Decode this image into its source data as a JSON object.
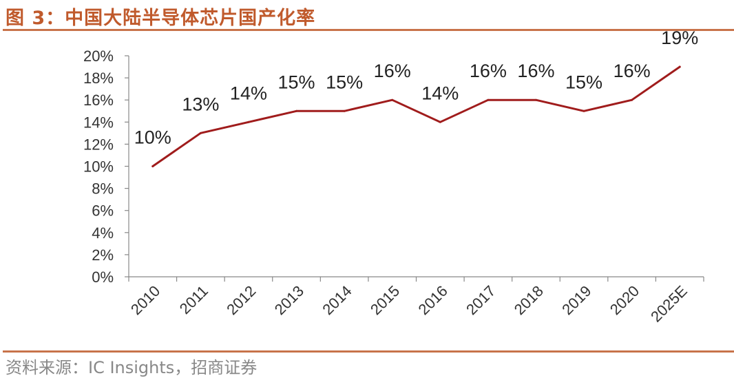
{
  "figure": {
    "title": "图 3：中国大陆半导体芯片国产化率",
    "source": "资料来源：IC Insights，招商证券"
  },
  "colors": {
    "title": "#c05a2c",
    "rule": "#c8734a",
    "line": "#a01c1c",
    "axis": "#888888"
  },
  "chart_data": {
    "type": "line",
    "title": "",
    "xlabel": "",
    "ylabel": "",
    "categories": [
      "2010",
      "2011",
      "2012",
      "2013",
      "2014",
      "2015",
      "2016",
      "2017",
      "2018",
      "2019",
      "2020",
      "2025E"
    ],
    "series": [
      {
        "values": [
          10,
          13,
          14,
          15,
          15,
          16,
          14,
          16,
          16,
          15,
          16,
          19
        ]
      }
    ],
    "data_labels": [
      "10%",
      "13%",
      "14%",
      "15%",
      "15%",
      "16%",
      "14%",
      "16%",
      "16%",
      "15%",
      "16%",
      "19%"
    ],
    "y_ticks": [
      "0%",
      "2%",
      "4%",
      "6%",
      "8%",
      "10%",
      "12%",
      "14%",
      "16%",
      "18%",
      "20%"
    ],
    "ylim": [
      0,
      20
    ],
    "grid": false,
    "legend": "none"
  }
}
